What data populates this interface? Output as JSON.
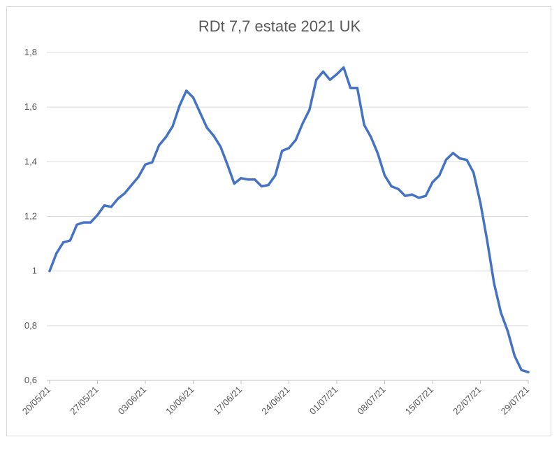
{
  "chart_data": {
    "type": "line",
    "title": "RDt 7,7 estate 2021 UK",
    "xlabel": "",
    "ylabel": "",
    "ylim": [
      0.6,
      1.8
    ],
    "yticks": [
      0.6,
      0.8,
      1.0,
      1.2,
      1.4,
      1.6,
      1.8
    ],
    "ytick_labels": [
      "0,6",
      "0,8",
      "1",
      "1,2",
      "1,4",
      "1,6",
      "1,8"
    ],
    "xtick_labels": [
      "20/05/21",
      "27/05/21",
      "03/06/21",
      "10/06/21",
      "17/06/21",
      "24/06/21",
      "01/07/21",
      "08/07/21",
      "15/07/21",
      "22/07/21",
      "29/07/21"
    ],
    "grid": "horizontal",
    "line_color": "#4472c4",
    "series": [
      {
        "name": "",
        "start_date": "20/05/21",
        "values": [
          1.0,
          1.065,
          1.105,
          1.112,
          1.17,
          1.178,
          1.178,
          1.205,
          1.24,
          1.235,
          1.265,
          1.285,
          1.315,
          1.345,
          1.39,
          1.398,
          1.46,
          1.49,
          1.53,
          1.605,
          1.66,
          1.635,
          1.58,
          1.525,
          1.495,
          1.455,
          1.39,
          1.32,
          1.34,
          1.335,
          1.335,
          1.31,
          1.315,
          1.35,
          1.44,
          1.45,
          1.48,
          1.54,
          1.59,
          1.7,
          1.73,
          1.7,
          1.72,
          1.745,
          1.67,
          1.67,
          1.535,
          1.49,
          1.43,
          1.35,
          1.31,
          1.3,
          1.275,
          1.28,
          1.268,
          1.275,
          1.325,
          1.35,
          1.408,
          1.432,
          1.412,
          1.407,
          1.36,
          1.25,
          1.11,
          0.955,
          0.848,
          0.78,
          0.69,
          0.638,
          0.63
        ]
      }
    ]
  }
}
